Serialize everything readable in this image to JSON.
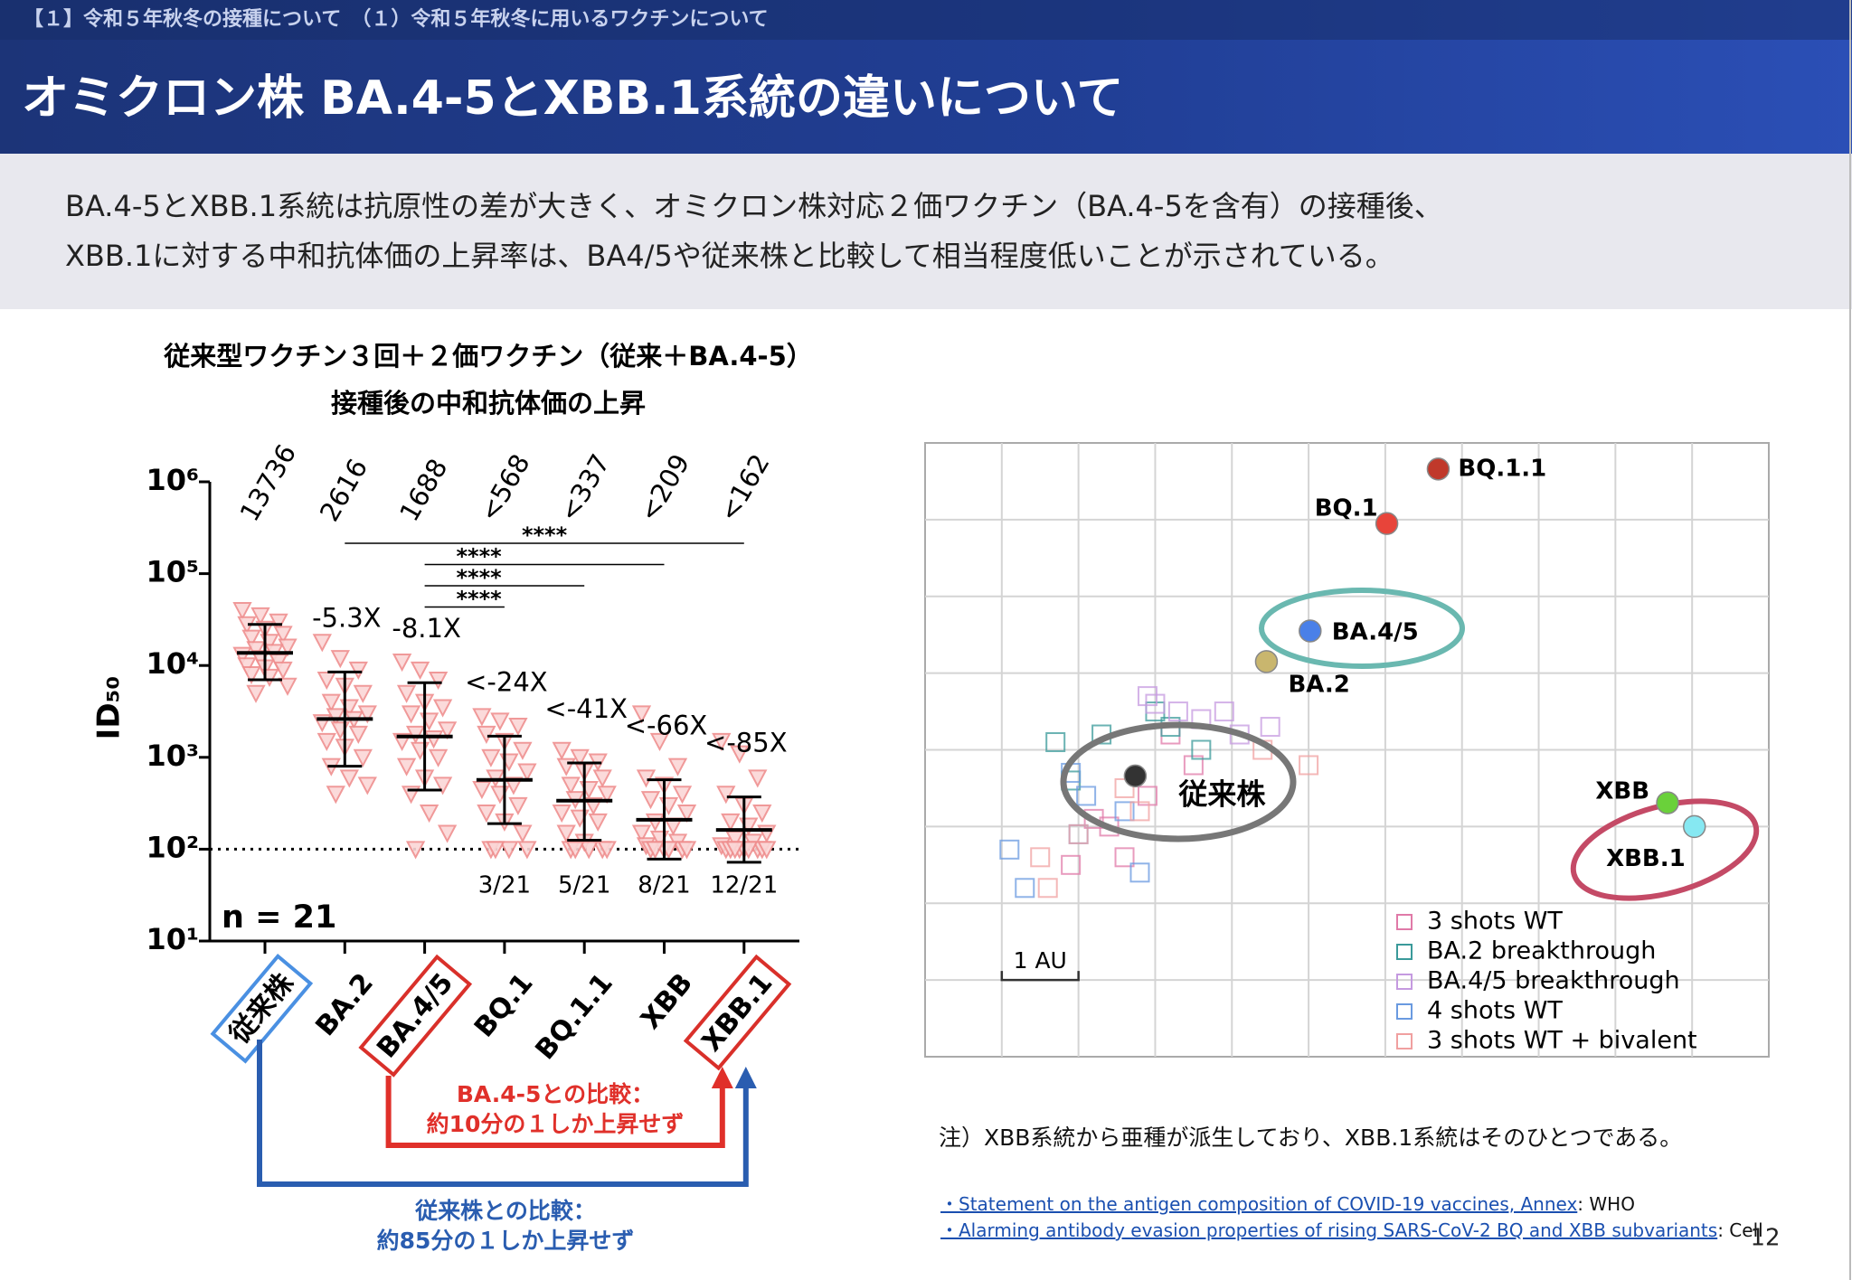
{
  "header": {
    "breadcrumb": "【１】令和５年秋冬の接種について　（１）令和５年秋冬に用いるワクチンについて",
    "title": "オミクロン株 BA.4-5とXBB.1系統の違いについて"
  },
  "summary": [
    "BA.4-5とXBB.1系統は抗原性の差が大きく、オミクロン株対応２価ワクチン（BA.4-5を含有）の接種後、",
    "XBB.1に対する中和抗体価の上昇率は、BA4/5や従来株と比較して相当程度低いことが示されている。"
  ],
  "chart_data": [
    {
      "type": "strip",
      "title": "従来型ワクチン３回＋２価ワクチン（従来＋BA.4-5）",
      "subtitle": "接種後の中和抗体価の上昇",
      "y_label": "ID₅₀",
      "log_y": true,
      "ylim": [
        10,
        1000000
      ],
      "yticks": [
        {
          "value": 10,
          "label": "10¹"
        },
        {
          "value": 100,
          "label": "10²"
        },
        {
          "value": 1000,
          "label": "10³"
        },
        {
          "value": 10000,
          "label": "10⁴"
        },
        {
          "value": 100000,
          "label": "10⁵"
        },
        {
          "value": 1000000,
          "label": "10⁶"
        }
      ],
      "categories": [
        "従来株",
        "BA.2",
        "BA.4/5",
        "BQ.1",
        "BQ.1.1",
        "XBB",
        "XBB.1"
      ],
      "point_color": "#ef8f8f",
      "points": [
        [
          40000,
          35000,
          30000,
          28000,
          25000,
          22000,
          20000,
          18000,
          16000,
          15000,
          14000,
          13000,
          12000,
          11000,
          10000,
          9500,
          9000,
          8000,
          7500,
          6000,
          5000
        ],
        [
          18000,
          12000,
          9000,
          7000,
          6000,
          5000,
          4000,
          3500,
          3000,
          2800,
          2600,
          2400,
          2000,
          1800,
          1500,
          1300,
          1000,
          800,
          600,
          500,
          400
        ],
        [
          11000,
          9000,
          7000,
          5000,
          4000,
          3500,
          3000,
          2500,
          2000,
          1800,
          1600,
          1500,
          1200,
          1000,
          800,
          600,
          500,
          400,
          250,
          150,
          100
        ],
        [
          2800,
          2500,
          2200,
          1800,
          1500,
          1200,
          1000,
          900,
          700,
          600,
          500,
          450,
          400,
          300,
          250,
          200,
          150,
          100,
          100,
          100,
          100
        ],
        [
          1200,
          1000,
          900,
          800,
          700,
          600,
          500,
          450,
          400,
          350,
          300,
          250,
          220,
          200,
          150,
          120,
          100,
          100,
          100,
          100,
          100
        ],
        [
          3000,
          1500,
          800,
          600,
          500,
          400,
          350,
          300,
          250,
          200,
          180,
          150,
          130,
          120,
          110,
          100,
          100,
          100,
          100,
          100,
          100
        ],
        [
          1500,
          1100,
          600,
          400,
          300,
          250,
          200,
          180,
          150,
          130,
          120,
          110,
          100,
          100,
          100,
          100,
          100,
          100,
          100,
          100,
          100
        ]
      ],
      "values": [
        13736,
        2616,
        1688,
        568,
        337,
        209,
        162
      ],
      "value_labels": [
        "13736",
        "2616",
        "1688",
        "<568",
        "<337",
        "<209",
        "<162"
      ],
      "ci_low": [
        7000,
        800,
        440,
        190,
        125,
        78,
        72
      ],
      "ci_high": [
        28000,
        8500,
        6500,
        1700,
        870,
        570,
        370
      ],
      "fold_labels": [
        null,
        "-5.3X",
        "-8.1X",
        "<-24X",
        "<-41X",
        "<-66X",
        "<-85X"
      ],
      "below_lod_labels": [
        null,
        null,
        null,
        "3/21",
        "5/21",
        "8/21",
        "12/21"
      ],
      "lod": 100,
      "n_label": "n = 21",
      "comparisons": [
        {
          "from": "BA.2",
          "to": "XBB.1",
          "label": "****"
        },
        {
          "from": "BA.4/5",
          "to": "XBB",
          "label": "****"
        },
        {
          "from": "BA.4/5",
          "to": "BQ.1.1",
          "label": "****"
        },
        {
          "from": "BA.4/5",
          "to": "BQ.1",
          "label": "****"
        }
      ],
      "category_boxes": [
        {
          "category": "従来株",
          "color": "#4a90e2"
        },
        {
          "category": "BA.4/5",
          "color": "#d9302a"
        },
        {
          "category": "XBB.1",
          "color": "#d9302a"
        }
      ],
      "annotations": [
        {
          "lines": [
            "BA.4-5との比較：",
            "約10分の１しか上昇せず"
          ],
          "color": "#e0302a"
        },
        {
          "lines": [
            "従来株との比較：",
            "約85分の１しか上昇せず"
          ],
          "color": "#2a5db0"
        }
      ]
    },
    {
      "type": "scatter",
      "xlim": [
        0,
        11
      ],
      "ylim": [
        0,
        8
      ],
      "grid": true,
      "antigens": {
        "names": [
          "BQ.1.1",
          "BQ.1",
          "BA.4/5",
          "BA.2",
          "従来株",
          "XBB",
          "XBB.1"
        ],
        "x": [
          6.69,
          6.02,
          5.02,
          4.45,
          2.74,
          9.68,
          10.03
        ],
        "y": [
          7.66,
          6.95,
          5.55,
          5.15,
          3.66,
          3.31,
          3.0
        ],
        "colors": [
          "#c0392b",
          "#e8443a",
          "#4a80e8",
          "#c9b66e",
          "#333333",
          "#6ad13a",
          "#86e8f2"
        ]
      },
      "series": [
        {
          "name": "3 shots WT",
          "color": "#e07aa8",
          "x": [
            2.4,
            2.9,
            3.5,
            2.6,
            3.2,
            1.9,
            2.2
          ],
          "y": [
            3.0,
            3.4,
            3.8,
            2.6,
            4.2,
            2.5,
            3.1
          ]
        },
        {
          "name": "BA.2 breakthrough",
          "color": "#3a9a9a",
          "x": [
            1.7,
            2.3,
            3.2,
            3.6,
            1.9,
            3.0
          ],
          "y": [
            4.1,
            4.2,
            4.3,
            4.0,
            3.6,
            4.5
          ]
        },
        {
          "name": "BA.4/5 breakthrough",
          "color": "#c59ae0",
          "x": [
            2.9,
            3.3,
            3.6,
            3.9,
            4.1,
            4.5,
            3.0
          ],
          "y": [
            4.7,
            4.5,
            4.4,
            4.5,
            4.2,
            4.3,
            4.6
          ]
        },
        {
          "name": "4 shots WT",
          "color": "#6a9ae0",
          "x": [
            1.1,
            1.3,
            1.9,
            2.1,
            2.6,
            2.8,
            2.0
          ],
          "y": [
            2.7,
            2.2,
            3.7,
            3.4,
            3.2,
            2.4,
            2.9
          ]
        },
        {
          "name": "3 shots WT + bivalent",
          "color": "#f0a0a0",
          "x": [
            1.5,
            2.0,
            2.8,
            4.4,
            5.0,
            1.6,
            2.6
          ],
          "y": [
            2.6,
            2.9,
            3.2,
            4.0,
            3.8,
            2.2,
            3.5
          ]
        }
      ],
      "scale_bar_label": "1 AU"
    }
  ],
  "note": "注）XBB系統から亜種が派生しており、XBB.1系統はそのひとつである。",
  "references": [
    {
      "link": "・Statement on the antigen composition of COVID-19 vaccines, Annex",
      "source": ": WHO"
    },
    {
      "link": "・Alarming antibody evasion properties of rising SARS-CoV-2 BQ and XBB subvariants",
      "source": ": Cell"
    }
  ],
  "page_number": "12"
}
